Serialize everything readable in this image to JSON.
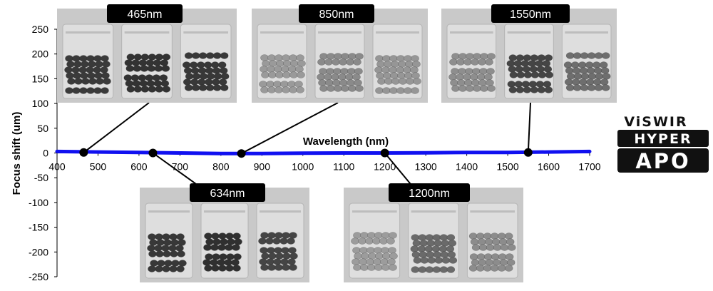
{
  "chart_data": {
    "type": "line",
    "xlabel": "Wavelength (nm)",
    "ylabel": "Focus shift (um)",
    "xlim": [
      400,
      1700
    ],
    "ylim": [
      -250,
      250
    ],
    "x_ticks": [
      400,
      500,
      600,
      700,
      800,
      900,
      1000,
      1100,
      1200,
      1300,
      1400,
      1500,
      1600,
      1700
    ],
    "y_ticks": [
      250,
      200,
      150,
      100,
      50,
      0,
      -50,
      -100,
      -150,
      -200,
      -250
    ],
    "series": [
      {
        "color": "#1010f0",
        "x": [
          400,
          500,
          600,
          700,
          800,
          850,
          900,
          1000,
          1100,
          1200,
          1300,
          1400,
          1500,
          1600,
          1700
        ],
        "y": [
          3,
          2,
          1,
          0,
          -1,
          -1,
          -1,
          -0.5,
          0,
          0,
          0.5,
          1,
          1,
          2,
          3
        ]
      }
    ],
    "markers": [
      {
        "label": "465nm",
        "x": 465,
        "y": 1
      },
      {
        "label": "634nm",
        "x": 634,
        "y": 0
      },
      {
        "label": "850nm",
        "x": 850,
        "y": -1
      },
      {
        "label": "1200nm",
        "x": 1200,
        "y": 0
      },
      {
        "label": "1550nm",
        "x": 1550,
        "y": 1
      }
    ]
  },
  "logo": {
    "brand": "ViSWIR",
    "line1": "HYPER",
    "line2": "APO"
  },
  "photos": [
    {
      "label": "465nm",
      "tone": [
        "#3a3a3a",
        "#333333",
        "#383838"
      ]
    },
    {
      "label": "850nm",
      "tone": [
        "#9a9a9a",
        "#8a8a8a",
        "#969696"
      ]
    },
    {
      "label": "1550nm",
      "tone": [
        "#8e8e8e",
        "#454545",
        "#6e6e6e"
      ]
    },
    {
      "label": "634nm",
      "tone": [
        "#383838",
        "#303030",
        "#454545"
      ]
    },
    {
      "label": "1200nm",
      "tone": [
        "#9c9c9c",
        "#6a6a6a",
        "#8c8c8c"
      ]
    }
  ]
}
